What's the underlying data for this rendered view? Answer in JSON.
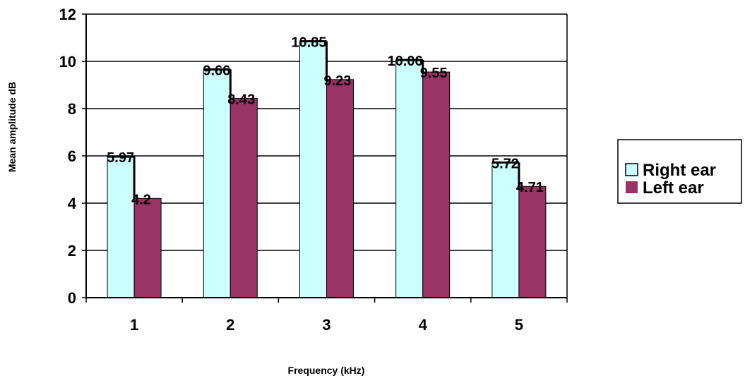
{
  "chart_data": {
    "type": "bar",
    "title": "",
    "xlabel": "Frequency (kHz)",
    "ylabel": "Mean amplitude  dB",
    "categories": [
      "1",
      "2",
      "3",
      "4",
      "5"
    ],
    "ylim": [
      0,
      12
    ],
    "yticks": [
      "0",
      "2",
      "4",
      "6",
      "8",
      "10",
      "12"
    ],
    "grid": true,
    "legend_position": "right",
    "series": [
      {
        "name": "Right ear",
        "values": [
          5.97,
          9.66,
          10.85,
          10.06,
          5.72
        ],
        "labels": [
          "5.97",
          "9.66",
          "10.85",
          "10.06",
          "5.72"
        ],
        "color": "#ccffff"
      },
      {
        "name": "Left ear",
        "values": [
          4.2,
          8.43,
          9.23,
          9.55,
          4.71
        ],
        "labels": [
          "4.2",
          "8.43",
          "9.23",
          "9.55",
          "4.71"
        ],
        "color": "#993366"
      }
    ]
  }
}
